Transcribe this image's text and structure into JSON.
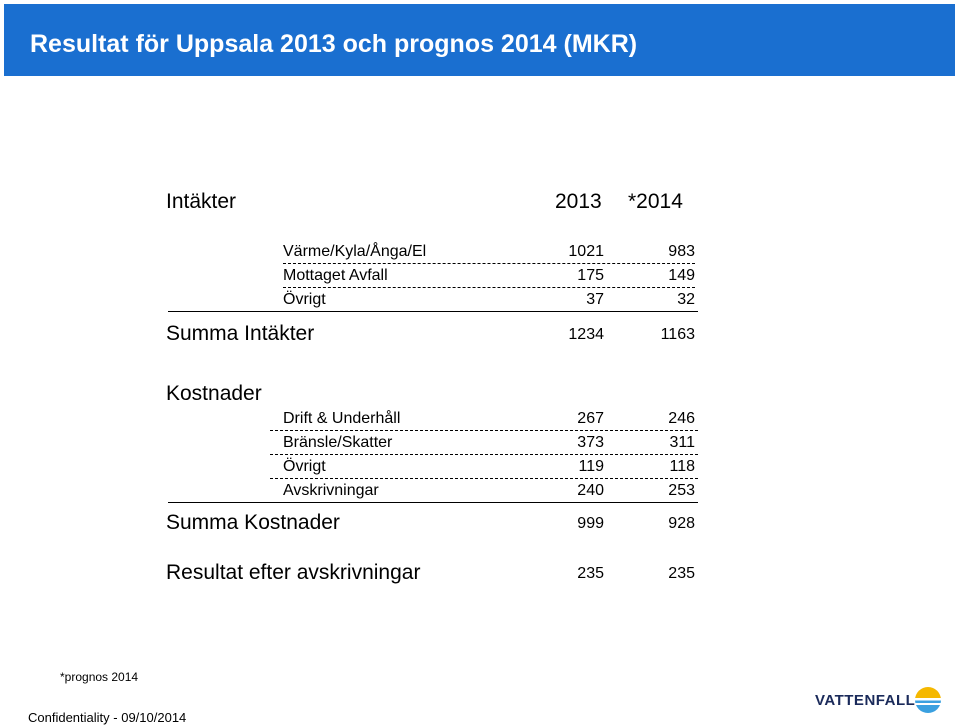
{
  "slide": {
    "title": "Resultat för Uppsala 2013 och prognos 2014 (MKR)"
  },
  "income": {
    "heading": "Intäkter",
    "col_2013": "2013",
    "col_2014": "*2014",
    "rows": [
      {
        "label": "Värme/Kyla/Ånga/El",
        "v2013": "1021",
        "v2014": "983"
      },
      {
        "label": "Mottaget Avfall",
        "v2013": "175",
        "v2014": "149"
      },
      {
        "label": "Övrigt",
        "v2013": "37",
        "v2014": "32"
      }
    ],
    "total_label": "Summa Intäkter",
    "total_2013": "1234",
    "total_2014": "1163"
  },
  "costs": {
    "heading": "Kostnader",
    "rows": [
      {
        "label": "Drift & Underhåll",
        "v2013": "267",
        "v2014": "246"
      },
      {
        "label": "Bränsle/Skatter",
        "v2013": "373",
        "v2014": "311"
      },
      {
        "label": "Övrigt",
        "v2013": "119",
        "v2014": "118"
      },
      {
        "label": "Avskrivningar",
        "v2013": "240",
        "v2014": "253"
      }
    ],
    "total_label": "Summa Kostnader",
    "total_2013": "999",
    "total_2014": "928"
  },
  "result": {
    "label": "Resultat efter avskrivningar",
    "v2013": "235",
    "v2014": "235"
  },
  "footer": {
    "note": "*prognos 2014",
    "confidentiality": "Confidentiality - 09/10/2014",
    "logo_text": "VATTENFALL"
  },
  "colors": {
    "title_bar": "#1a6fd0",
    "logo_blue": "#1a2a5a",
    "logo_yellow": "#f5b800",
    "logo_lightblue": "#3aa0e0"
  }
}
